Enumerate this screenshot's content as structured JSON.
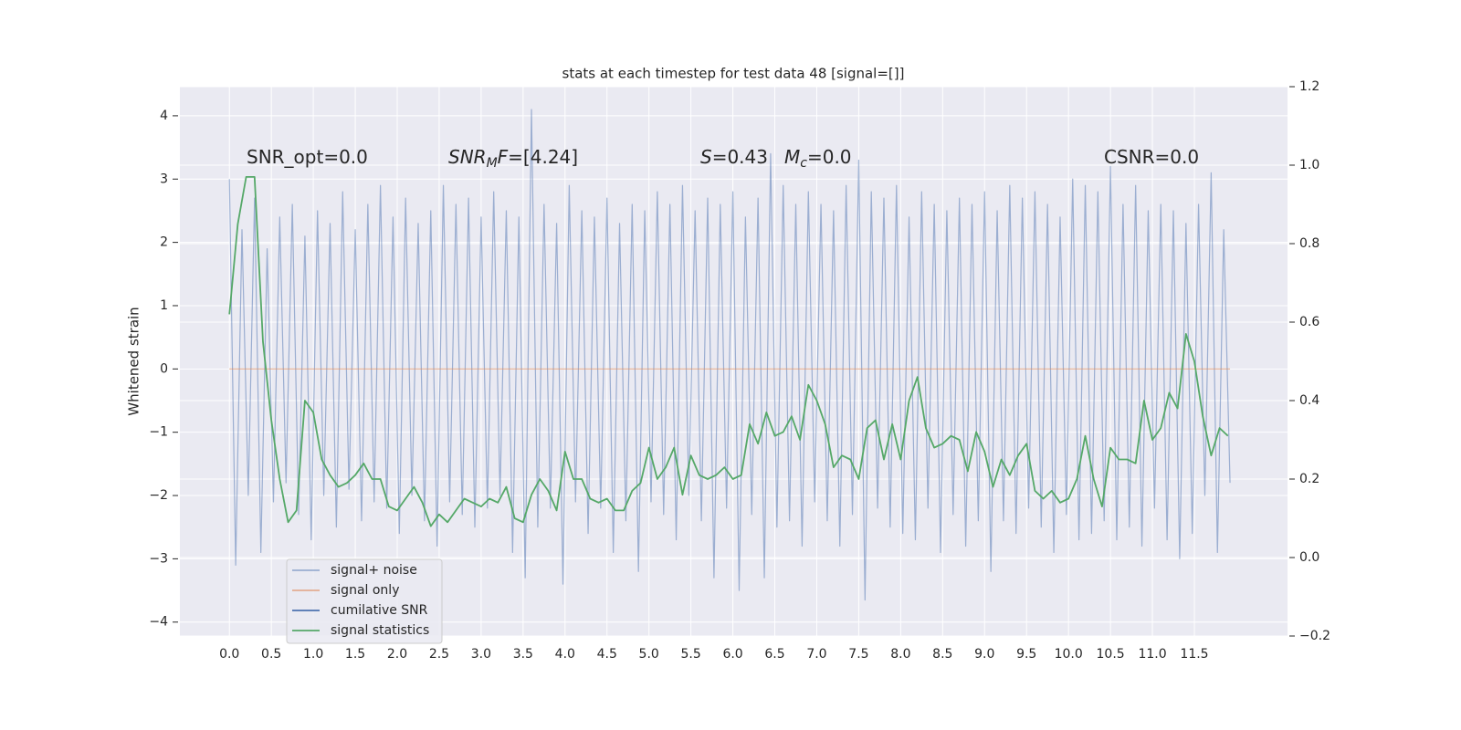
{
  "chart_data": {
    "type": "line",
    "title": "stats at each timestep for test data 48 [signal=[]]",
    "ylabel": "Whitened strain",
    "annotations": [
      [
        "SNR_opt=0.0"
      ],
      [
        "SNR",
        "M",
        "F",
        "=[4.24]"
      ],
      [
        "S",
        "=0.43"
      ],
      [
        "M",
        "c",
        "=0.0"
      ],
      [
        "CSNR=0.0"
      ]
    ],
    "xlim": [
      -0.59,
      12.61
    ],
    "ylim": [
      -4.22,
      4.46
    ],
    "y2lim": [
      -0.2,
      1.2
    ],
    "xticks": [
      {
        "value": 0,
        "label": "0.0"
      },
      0.5,
      {
        "value": 1,
        "label": "1.0"
      },
      1.5,
      {
        "value": 2,
        "label": "2.0"
      },
      2.5,
      {
        "value": 3,
        "label": "3.0"
      },
      3.5,
      {
        "value": 4,
        "label": "4.0"
      },
      4.5,
      {
        "value": 5,
        "label": "5.0"
      },
      5.5,
      {
        "value": 6,
        "label": "6.0"
      },
      6.5,
      {
        "value": 7,
        "label": "7.0"
      },
      7.5,
      {
        "value": 8,
        "label": "8.0"
      },
      8.5,
      {
        "value": 9,
        "label": "9.0"
      },
      9.5,
      {
        "value": 10,
        "label": "10.0"
      },
      10.5,
      {
        "value": 11,
        "label": "11.0"
      },
      11.5
    ],
    "yticks": [
      {
        "value": -4,
        "label": "−4"
      },
      {
        "value": -3,
        "label": "−3"
      },
      {
        "value": -2,
        "label": "−2"
      },
      {
        "value": -1,
        "label": "−1"
      },
      0,
      1,
      2,
      3,
      4
    ],
    "y2ticks": [
      {
        "value": -0.2,
        "label": "−0.2"
      },
      {
        "value": 0,
        "label": "0.0"
      },
      0.2,
      0.4,
      0.6,
      0.8,
      {
        "value": 1,
        "label": "1.0"
      },
      1.2
    ],
    "grid": true,
    "legend": "lower left",
    "series": [
      {
        "name": "signal+ noise",
        "color": "#4c72b0",
        "x": [
          0,
          0.075,
          0.15,
          0.225,
          0.3,
          0.375,
          0.45,
          0.525,
          0.6,
          0.675,
          0.75,
          0.825,
          0.9,
          0.975,
          1.05,
          1.125,
          1.2,
          1.275,
          1.35,
          1.425,
          1.5,
          1.575,
          1.65,
          1.725,
          1.8,
          1.875,
          1.95,
          2.025,
          2.1,
          2.175,
          2.25,
          2.325,
          2.4,
          2.475,
          2.55,
          2.625,
          2.7,
          2.775,
          2.85,
          2.925,
          3,
          3.075,
          3.15,
          3.225,
          3.3,
          3.375,
          3.45,
          3.525,
          3.6,
          3.675,
          3.75,
          3.825,
          3.9,
          3.975,
          4.05,
          4.125,
          4.2,
          4.275,
          4.35,
          4.425,
          4.5,
          4.575,
          4.65,
          4.725,
          4.8,
          4.875,
          4.95,
          5.025,
          5.1,
          5.175,
          5.25,
          5.325,
          5.4,
          5.475,
          5.55,
          5.625,
          5.7,
          5.775,
          5.85,
          5.925,
          6,
          6.075,
          6.15,
          6.225,
          6.3,
          6.375,
          6.45,
          6.525,
          6.6,
          6.675,
          6.75,
          6.825,
          6.9,
          6.975,
          7.05,
          7.125,
          7.2,
          7.275,
          7.35,
          7.425,
          7.5,
          7.575,
          7.65,
          7.725,
          7.8,
          7.875,
          7.95,
          8.025,
          8.1,
          8.175,
          8.25,
          8.325,
          8.4,
          8.475,
          8.55,
          8.625,
          8.7,
          8.775,
          8.85,
          8.925,
          9,
          9.075,
          9.15,
          9.225,
          9.3,
          9.375,
          9.45,
          9.525,
          9.6,
          9.675,
          9.75,
          9.825,
          9.9,
          9.975,
          10.05,
          10.125,
          10.2,
          10.275,
          10.35,
          10.425,
          10.5,
          10.575,
          10.65,
          10.725,
          10.8,
          10.875,
          10.95,
          11.025,
          11.1,
          11.175,
          11.25,
          11.325,
          11.4,
          11.475,
          11.55,
          11.625,
          11.7,
          11.775,
          11.85,
          11.925
        ],
        "values": [
          3.0,
          -3.1,
          2.2,
          -2.0,
          2.7,
          -2.9,
          1.9,
          -2.1,
          2.4,
          -1.8,
          2.6,
          -2.3,
          2.1,
          -2.7,
          2.5,
          -2.0,
          2.3,
          -2.5,
          2.8,
          -1.9,
          2.2,
          -2.4,
          2.6,
          -2.1,
          2.9,
          -2.2,
          2.4,
          -2.6,
          2.7,
          -2.0,
          2.3,
          -2.4,
          2.5,
          -2.8,
          2.9,
          -2.1,
          2.6,
          -2.3,
          2.7,
          -2.5,
          2.4,
          -2.2,
          2.8,
          -2.0,
          2.5,
          -2.9,
          2.4,
          -3.3,
          4.1,
          -2.5,
          2.6,
          -2.2,
          2.3,
          -3.4,
          2.9,
          -2.1,
          2.5,
          -2.6,
          2.4,
          -2.2,
          2.7,
          -2.9,
          2.3,
          -2.4,
          2.6,
          -3.2,
          2.5,
          -2.1,
          2.8,
          -2.3,
          2.6,
          -2.7,
          2.9,
          -2.0,
          2.5,
          -2.4,
          2.7,
          -3.3,
          2.6,
          -2.2,
          2.8,
          -3.5,
          2.4,
          -2.3,
          2.7,
          -3.3,
          3.4,
          -2.5,
          2.9,
          -2.4,
          2.6,
          -2.8,
          2.8,
          -2.1,
          2.6,
          -2.4,
          2.5,
          -2.8,
          2.9,
          -2.3,
          3.3,
          -3.65,
          2.8,
          -2.2,
          2.7,
          -2.5,
          2.9,
          -2.6,
          2.4,
          -2.7,
          2.8,
          -2.2,
          2.6,
          -2.9,
          2.5,
          -2.3,
          2.7,
          -2.8,
          2.6,
          -2.4,
          2.8,
          -3.2,
          2.5,
          -2.4,
          2.9,
          -2.6,
          2.7,
          -2.2,
          2.8,
          -2.5,
          2.6,
          -2.9,
          2.4,
          -2.3,
          3.0,
          -2.7,
          2.9,
          -2.6,
          2.8,
          -2.4,
          3.2,
          -2.7,
          2.6,
          -2.5,
          2.9,
          -2.8,
          2.5,
          -2.2,
          2.6,
          -2.7,
          2.5,
          -3.0,
          2.3,
          -2.6,
          2.6,
          -2.0,
          3.1,
          -2.9,
          2.2,
          -1.8
        ]
      },
      {
        "name": "signal only",
        "color": "#dd8452",
        "x": [
          0,
          11.925
        ],
        "values": [
          0,
          0
        ]
      },
      {
        "name": "cumilative SNR",
        "color": "#4c72b0",
        "x": [],
        "values": []
      },
      {
        "name": "signal statistics",
        "color": "#55a868",
        "axis": "y2",
        "x": [
          0,
          0.1,
          0.2,
          0.3,
          0.4,
          0.5,
          0.6,
          0.7,
          0.8,
          0.9,
          1,
          1.1,
          1.2,
          1.3,
          1.4,
          1.5,
          1.6,
          1.7,
          1.8,
          1.9,
          2,
          2.1,
          2.2,
          2.3,
          2.4,
          2.5,
          2.6,
          2.7,
          2.8,
          2.9,
          3,
          3.1,
          3.2,
          3.3,
          3.4,
          3.5,
          3.6,
          3.7,
          3.8,
          3.9,
          4,
          4.1,
          4.2,
          4.3,
          4.4,
          4.5,
          4.6,
          4.7,
          4.8,
          4.9,
          5,
          5.1,
          5.2,
          5.3,
          5.4,
          5.5,
          5.6,
          5.7,
          5.8,
          5.9,
          6,
          6.1,
          6.2,
          6.3,
          6.4,
          6.5,
          6.6,
          6.7,
          6.8,
          6.9,
          7,
          7.1,
          7.2,
          7.3,
          7.4,
          7.5,
          7.6,
          7.7,
          7.8,
          7.9,
          8,
          8.1,
          8.2,
          8.3,
          8.4,
          8.5,
          8.6,
          8.7,
          8.8,
          8.9,
          9,
          9.1,
          9.2,
          9.3,
          9.4,
          9.5,
          9.6,
          9.7,
          9.8,
          9.9,
          10,
          10.1,
          10.2,
          10.3,
          10.4,
          10.5,
          10.6,
          10.7,
          10.8,
          10.9,
          11,
          11.1,
          11.2,
          11.3,
          11.4,
          11.5,
          11.6,
          11.7,
          11.8,
          11.9
        ],
        "values": [
          0.62,
          0.85,
          0.97,
          0.97,
          0.55,
          0.35,
          0.2,
          0.09,
          0.12,
          0.4,
          0.37,
          0.25,
          0.21,
          0.18,
          0.19,
          0.21,
          0.24,
          0.2,
          0.2,
          0.13,
          0.12,
          0.15,
          0.18,
          0.14,
          0.08,
          0.11,
          0.09,
          0.12,
          0.15,
          0.14,
          0.13,
          0.15,
          0.14,
          0.18,
          0.1,
          0.09,
          0.16,
          0.2,
          0.17,
          0.12,
          0.27,
          0.2,
          0.2,
          0.15,
          0.14,
          0.15,
          0.12,
          0.12,
          0.17,
          0.19,
          0.28,
          0.2,
          0.23,
          0.28,
          0.16,
          0.26,
          0.21,
          0.2,
          0.21,
          0.23,
          0.2,
          0.21,
          0.34,
          0.29,
          0.37,
          0.31,
          0.32,
          0.36,
          0.3,
          0.44,
          0.4,
          0.34,
          0.23,
          0.26,
          0.25,
          0.2,
          0.33,
          0.35,
          0.25,
          0.34,
          0.25,
          0.4,
          0.46,
          0.33,
          0.28,
          0.29,
          0.31,
          0.3,
          0.22,
          0.32,
          0.27,
          0.18,
          0.25,
          0.21,
          0.26,
          0.29,
          0.17,
          0.15,
          0.17,
          0.14,
          0.15,
          0.2,
          0.31,
          0.2,
          0.13,
          0.28,
          0.25,
          0.25,
          0.24,
          0.4,
          0.3,
          0.33,
          0.42,
          0.38,
          0.57,
          0.5,
          0.36,
          0.26,
          0.33,
          0.31
        ]
      }
    ]
  }
}
